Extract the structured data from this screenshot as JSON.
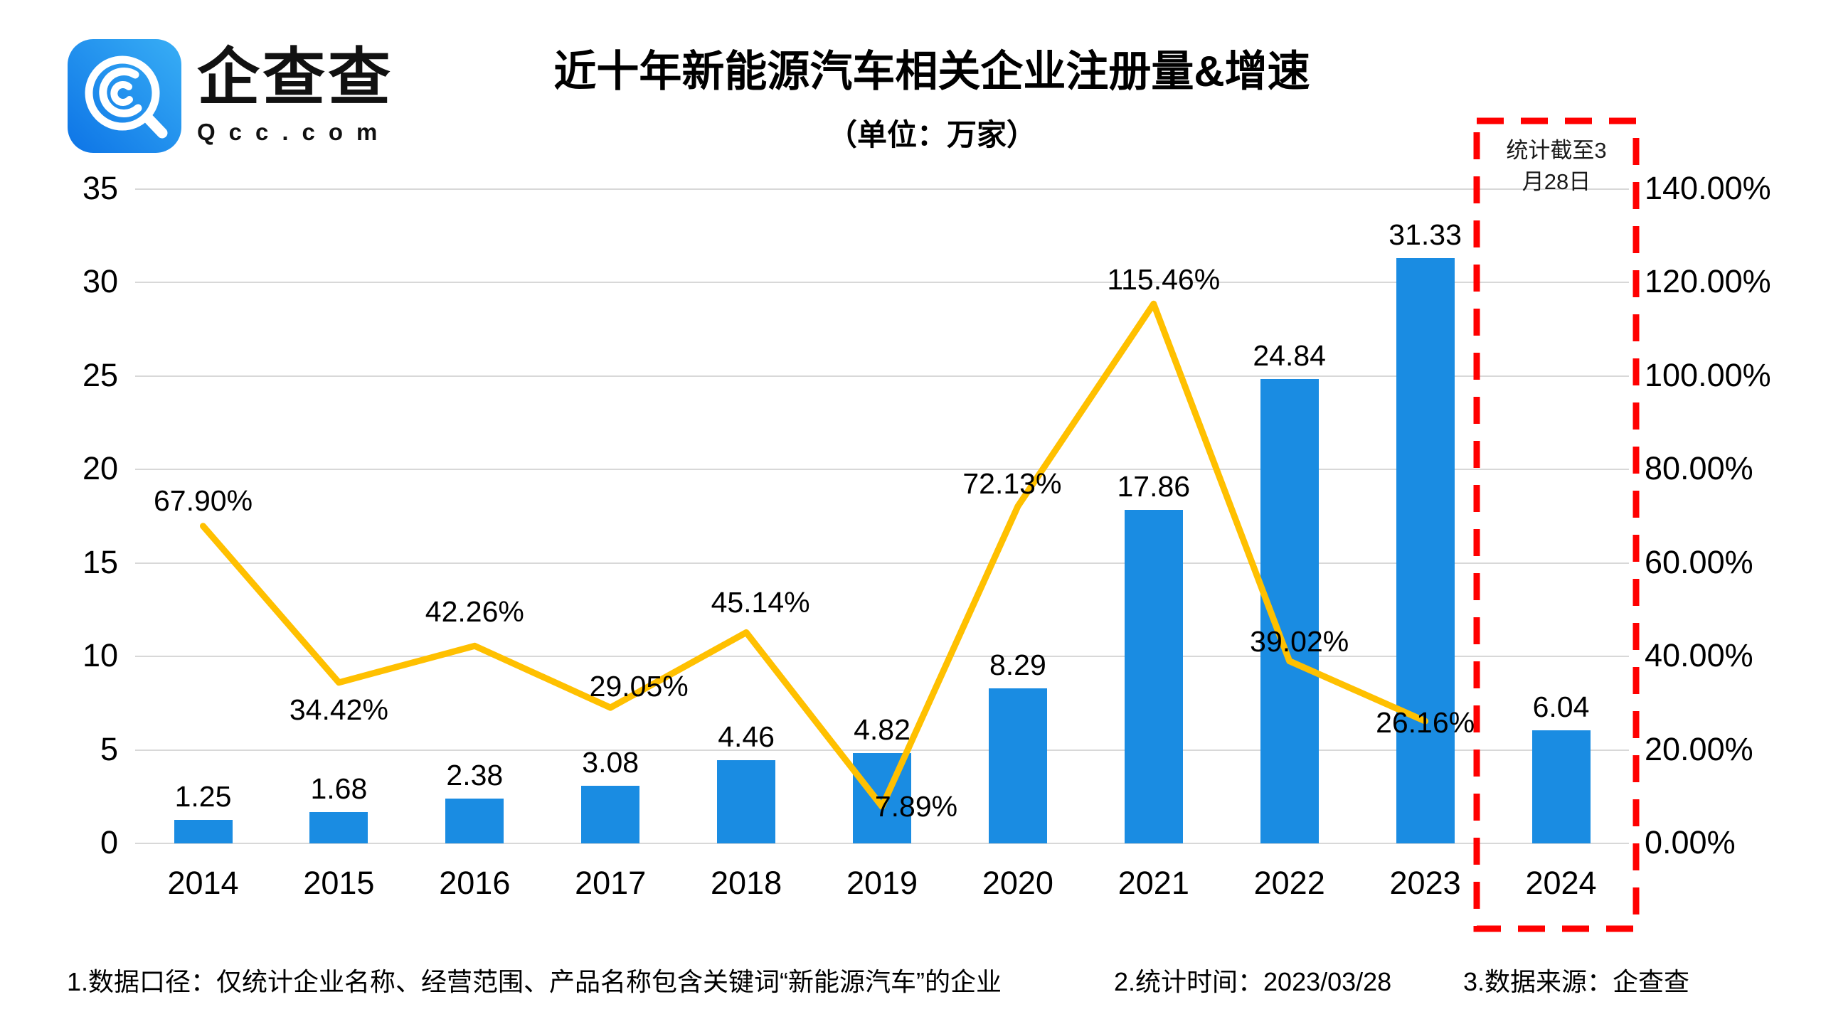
{
  "logo": {
    "brand": "企查查",
    "domain": "Qcc.com"
  },
  "header": {
    "title": "近十年新能源汽车相关企业注册量&增速",
    "subtitle": "（单位：万家）"
  },
  "footer": {
    "note1": "1.数据口径：仅统计企业名称、经营范围、产品名称包含关键词“新能源汽车”的企业",
    "note2": "2.统计时间：2023/03/28",
    "note3": "3.数据来源：企查查"
  },
  "chart_data": {
    "type": "bar+line",
    "title": "近十年新能源汽车相关企业注册量&增速",
    "subtitle": "（单位：万家）",
    "categories": [
      "2014",
      "2015",
      "2016",
      "2017",
      "2018",
      "2019",
      "2020",
      "2021",
      "2022",
      "2023",
      "2024"
    ],
    "series": [
      {
        "name": "注册量",
        "type": "bar",
        "unit": "万家",
        "color": "#1a8ce2",
        "values": [
          1.25,
          1.68,
          2.38,
          3.08,
          4.46,
          4.82,
          8.29,
          17.86,
          24.84,
          31.33,
          6.04
        ]
      },
      {
        "name": "增速",
        "type": "line",
        "unit": "%",
        "color": "#ffc000",
        "values": [
          67.9,
          34.42,
          42.26,
          29.05,
          45.14,
          7.89,
          72.13,
          115.46,
          39.02,
          26.16,
          null
        ]
      }
    ],
    "axes": {
      "left": {
        "min": 0,
        "max": 35,
        "step": 5,
        "ticks": [
          "35",
          "30",
          "25",
          "20",
          "15",
          "10",
          "5",
          "0"
        ]
      },
      "right": {
        "min": 0,
        "max": 140,
        "step": 20,
        "ticks": [
          "140.00%",
          "120.00%",
          "100.00%",
          "80.00%",
          "60.00%",
          "40.00%",
          "20.00%",
          "0.00%"
        ]
      }
    },
    "grid": true,
    "legend_position": "none",
    "gridline_color": "#d8d8d8",
    "highlight": {
      "category": "2024",
      "box_color": "#ff0000",
      "note": "统计截至3月28日"
    }
  }
}
